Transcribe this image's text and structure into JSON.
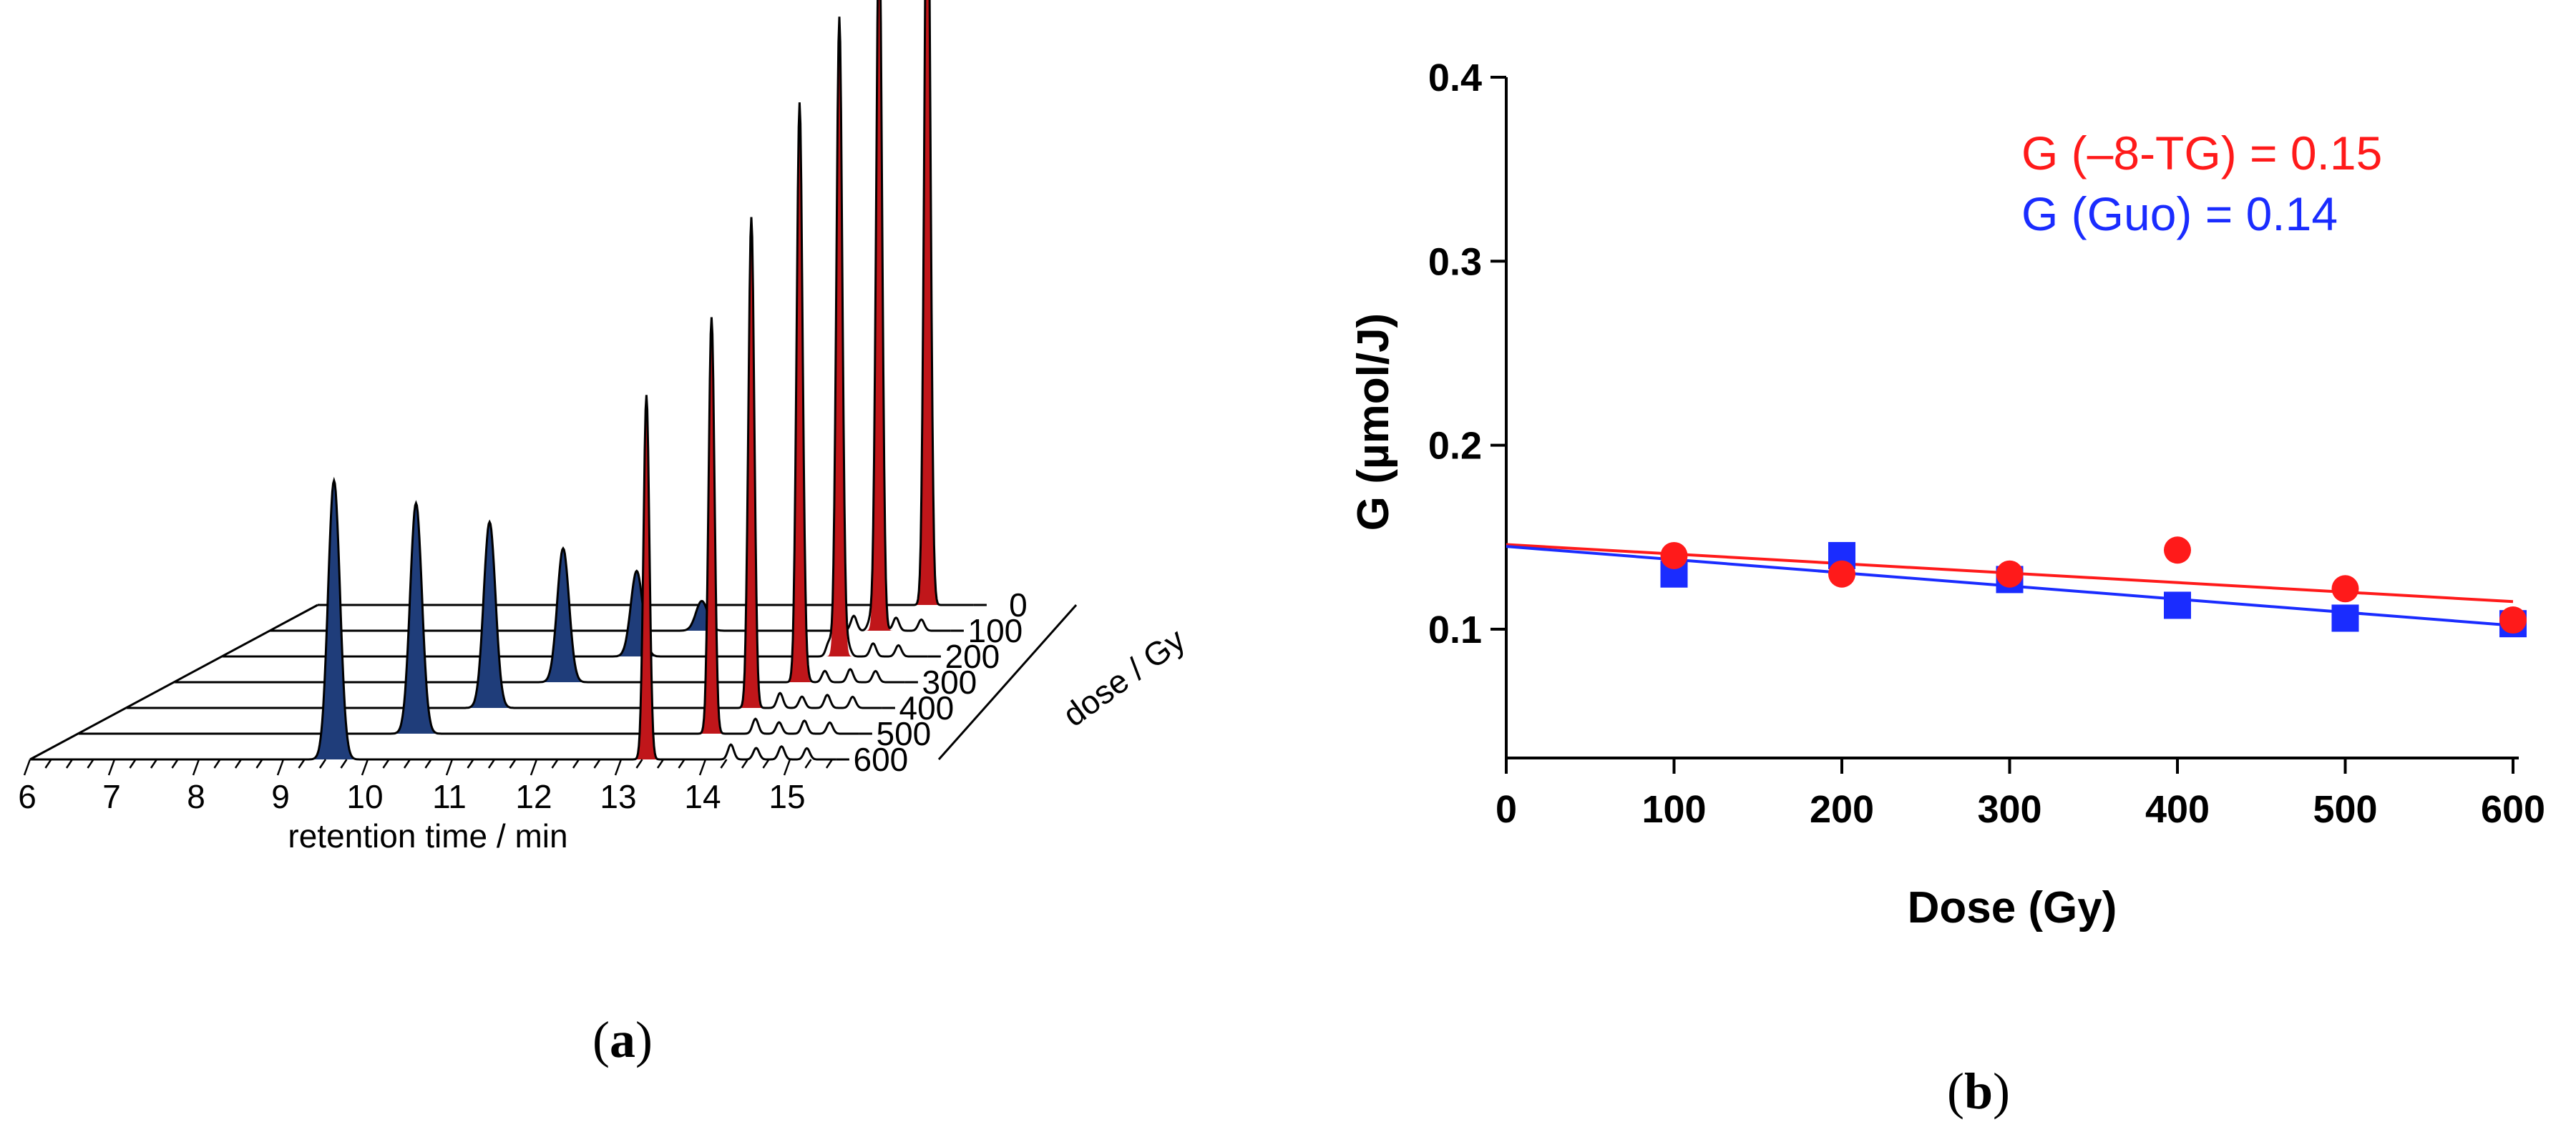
{
  "chart_data": [
    {
      "type": "line",
      "title": "",
      "panel_label": "a",
      "xlabel": "retention time / min",
      "zlabel": "dose / Gy",
      "x_ticks": [
        "6",
        "7",
        "8",
        "9",
        "10",
        "11",
        "12",
        "13",
        "14",
        "15"
      ],
      "xlim": [
        6,
        15.6
      ],
      "dose_levels": [
        "0",
        "100",
        "200",
        "300",
        "400",
        "500",
        "600"
      ],
      "series": [
        {
          "name": "Guo",
          "color": "#1f3d7a",
          "doses": [
            0,
            100,
            200,
            300,
            400,
            500,
            600
          ],
          "retention_time": [
            12.9,
            12.6,
            12.1,
            11.5,
            10.9,
            10.3,
            9.6
          ],
          "relative_height": [
            0.0,
            0.08,
            0.23,
            0.36,
            0.5,
            0.62,
            0.75
          ]
        },
        {
          "name": "8-TG",
          "color": "#c0161a",
          "doses": [
            0,
            100,
            200,
            300,
            400,
            500,
            600
          ],
          "retention_time": [
            15.0,
            14.7,
            14.5,
            14.3,
            14.0,
            13.8,
            13.3
          ],
          "relative_height": [
            2.2,
            1.92,
            1.72,
            1.55,
            1.32,
            1.12,
            0.98
          ]
        }
      ]
    },
    {
      "type": "scatter",
      "title": "",
      "panel_label": "b",
      "xlabel": "Dose (Gy)",
      "ylabel": "G (µmol/J)",
      "xlim": [
        0,
        600
      ],
      "ylim": [
        0.03,
        0.4
      ],
      "x_ticks": [
        "0",
        "100",
        "200",
        "300",
        "400",
        "500",
        "600"
      ],
      "y_ticks": [
        "0.1",
        "0.2",
        "0.3",
        "0.4"
      ],
      "grid": false,
      "series": [
        {
          "name": "–8-TG",
          "marker": "circle",
          "color": "#ff1a1a",
          "x": [
            100,
            200,
            300,
            400,
            500,
            600
          ],
          "y": [
            0.14,
            0.13,
            0.13,
            0.143,
            0.122,
            0.105
          ],
          "fit": {
            "intercept": 0.146,
            "end_value": 0.115
          }
        },
        {
          "name": "Guo",
          "marker": "square",
          "color": "#1a2cff",
          "x": [
            100,
            200,
            300,
            400,
            500,
            600
          ],
          "y": [
            0.13,
            0.14,
            0.127,
            0.113,
            0.106,
            0.103
          ],
          "fit": {
            "intercept": 0.145,
            "end_value": 0.102
          }
        }
      ],
      "annotations": [
        {
          "text": "G (–8-TG) = 0.15",
          "color": "#ff1a1a"
        },
        {
          "text": "G (Guo) = 0.14",
          "color": "#1a2cff"
        }
      ]
    }
  ]
}
